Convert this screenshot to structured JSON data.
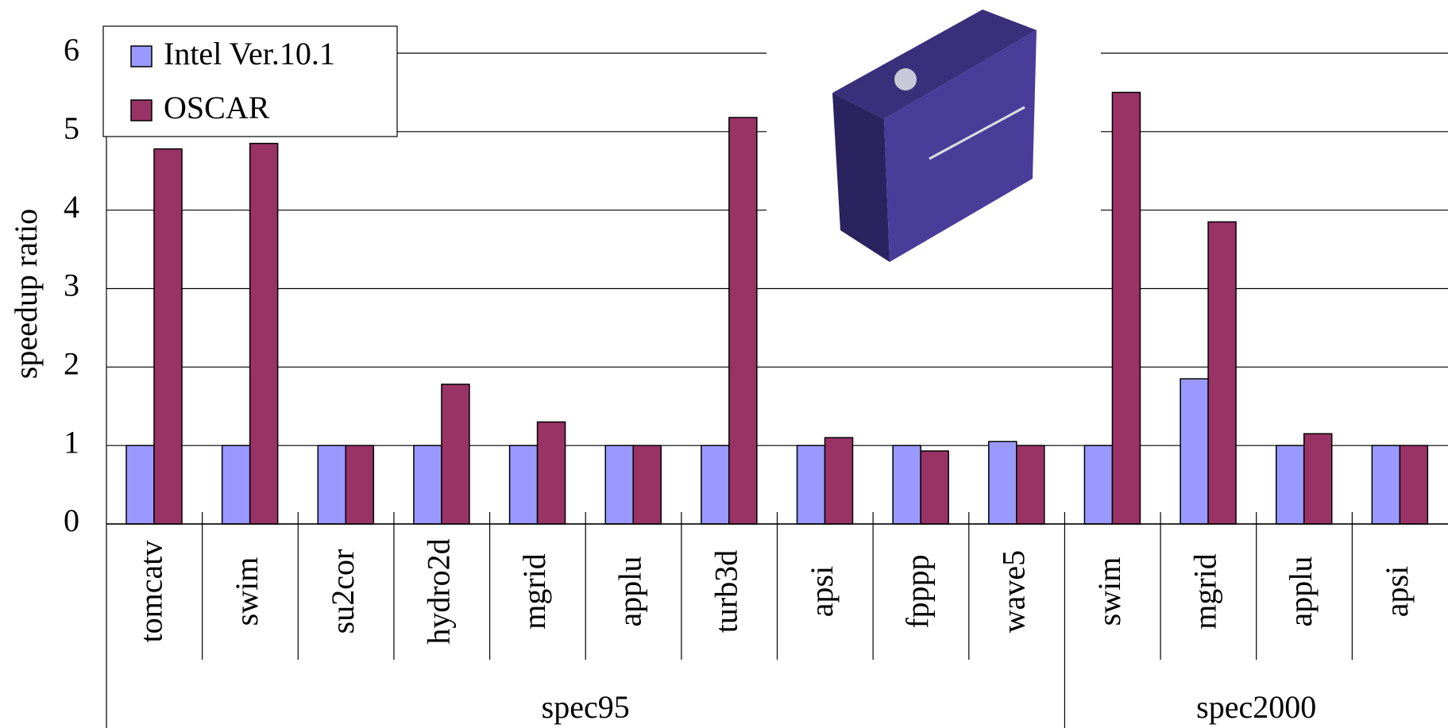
{
  "chart_data": {
    "type": "bar",
    "y_label": "speedup ratio",
    "groups": [
      {
        "name": "spec95",
        "categories": [
          "tomcatv",
          "swim",
          "su2cor",
          "hydro2d",
          "mgrid",
          "applu",
          "turb3d",
          "apsi",
          "fpppp",
          "wave5"
        ]
      },
      {
        "name": "spec2000",
        "categories": [
          "swim",
          "mgrid",
          "applu",
          "apsi"
        ]
      }
    ],
    "series": [
      {
        "name": "Intel Ver.10.1",
        "color": "#9999ff",
        "values": [
          1,
          1,
          1,
          1,
          1,
          1,
          1,
          1,
          1,
          1.05,
          1,
          1.85,
          1,
          1
        ]
      },
      {
        "name": "OSCAR",
        "color": "#993366",
        "values": [
          4.78,
          4.85,
          1,
          1.78,
          1.3,
          1,
          5.18,
          1.1,
          0.93,
          1,
          5.5,
          3.85,
          1.15,
          1
        ]
      }
    ],
    "ylim": [
      0,
      6
    ],
    "yticks": [
      0,
      1,
      2,
      3,
      4,
      5,
      6
    ],
    "grid": true,
    "legend": "upper left"
  }
}
